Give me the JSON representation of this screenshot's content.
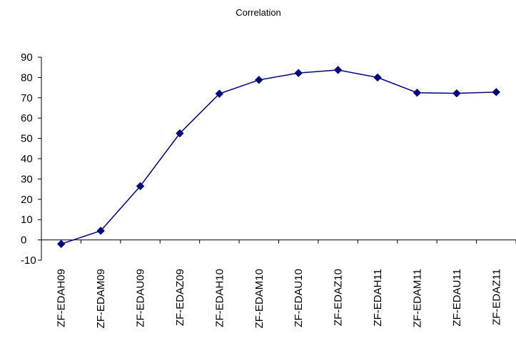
{
  "chart_data": {
    "type": "line",
    "title": "Correlation",
    "xlabel": "",
    "ylabel": "",
    "categories": [
      "ZF-EDAH09",
      "ZF-EDAM09",
      "ZF-EDAU09",
      "ZF-EDAZ09",
      "ZF-EDAH10",
      "ZF-EDAM10",
      "ZF-EDAU10",
      "ZF-EDAZ10",
      "ZF-EDAH11",
      "ZF-EDAM11",
      "ZF-EDAU11",
      "ZF-EDAZ11"
    ],
    "series": [
      {
        "values": [
          -2,
          4.5,
          26.5,
          52.5,
          72,
          78.8,
          82.2,
          83.7,
          80,
          72.5,
          72.2,
          72.8
        ]
      }
    ],
    "ylim": [
      -10,
      90
    ],
    "yticks": [
      -10,
      0,
      10,
      20,
      30,
      40,
      50,
      60,
      70,
      80,
      90
    ],
    "grid": false,
    "legend": "none",
    "colors": {
      "line": "#000080",
      "marker": "#000080",
      "axis": "#000000"
    }
  }
}
